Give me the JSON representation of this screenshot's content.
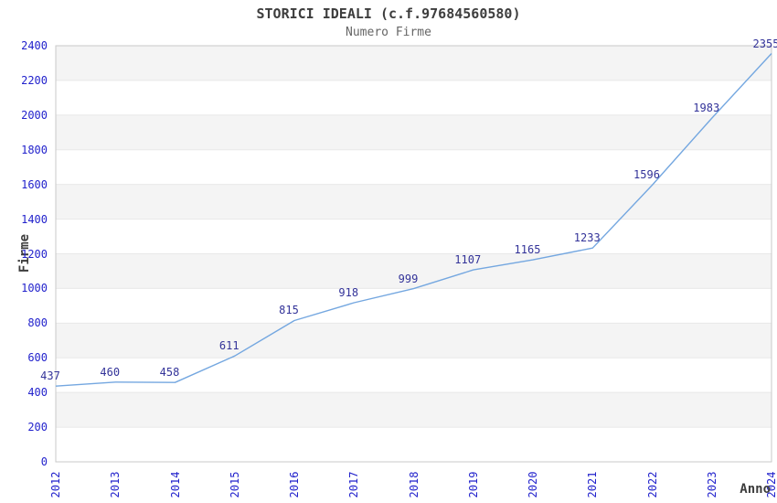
{
  "chart_data": {
    "type": "line",
    "title": "STORICI IDEALI (c.f.97684560580)",
    "subtitle": "Numero Firme",
    "xlabel": "Anno",
    "ylabel": "Firme",
    "categories": [
      "2012",
      "2013",
      "2014",
      "2015",
      "2016",
      "2017",
      "2018",
      "2019",
      "2020",
      "2021",
      "2022",
      "2023",
      "2024"
    ],
    "series": [
      {
        "name": "Numero Firme",
        "values": [
          437,
          460,
          458,
          611,
          815,
          918,
          999,
          1107,
          1165,
          1233,
          1596,
          1983,
          2355
        ]
      }
    ],
    "data_labels_shown": true,
    "ylim": [
      0,
      2400
    ],
    "ytick_step": 200,
    "grid": "horizontal-bands-alternating",
    "legend": "none",
    "colors": {
      "line": "#74a7e0",
      "tick_label": "#2222cc",
      "data_label": "#333399",
      "band_fill": "#f4f4f4",
      "gridline": "#e8e8e8",
      "plot_border": "#c9c9c9",
      "title": "#3d3d3d",
      "subtitle": "#666666",
      "axis_title": "#3d3d3d",
      "background": "#ffffff"
    }
  }
}
